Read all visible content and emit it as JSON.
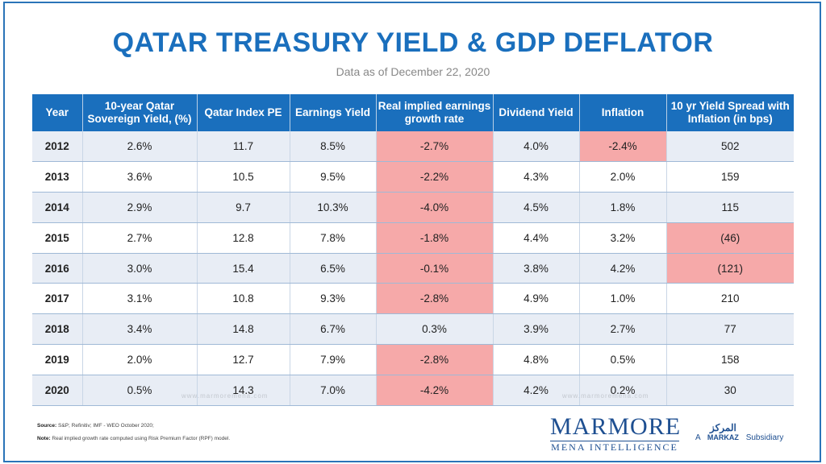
{
  "chart_data": {
    "type": "table",
    "title": "QATAR TREASURY YIELD & GDP DEFLATOR",
    "subtitle": "Data as of December 22, 2020",
    "columns": [
      "Year",
      "10-year Qatar Sovereign Yield, (%)",
      "Qatar Index PE",
      "Earnings Yield",
      "Real implied earnings growth rate",
      "Dividend Yield",
      "Inflation",
      "10 yr Yield Spread with Inflation (in bps)"
    ],
    "rows": [
      {
        "year": "2012",
        "sovereign_yield": "2.6%",
        "pe": "11.7",
        "earnings_yield": "8.5%",
        "real_growth": "-2.7%",
        "dividend_yield": "4.0%",
        "inflation": "-2.4%",
        "spread": "502",
        "highlight": [
          "real_growth",
          "inflation"
        ]
      },
      {
        "year": "2013",
        "sovereign_yield": "3.6%",
        "pe": "10.5",
        "earnings_yield": "9.5%",
        "real_growth": "-2.2%",
        "dividend_yield": "4.3%",
        "inflation": "2.0%",
        "spread": "159",
        "highlight": [
          "real_growth"
        ]
      },
      {
        "year": "2014",
        "sovereign_yield": "2.9%",
        "pe": "9.7",
        "earnings_yield": "10.3%",
        "real_growth": "-4.0%",
        "dividend_yield": "4.5%",
        "inflation": "1.8%",
        "spread": "115",
        "highlight": [
          "real_growth"
        ]
      },
      {
        "year": "2015",
        "sovereign_yield": "2.7%",
        "pe": "12.8",
        "earnings_yield": "7.8%",
        "real_growth": "-1.8%",
        "dividend_yield": "4.4%",
        "inflation": "3.2%",
        "spread": "(46)",
        "highlight": [
          "real_growth",
          "spread"
        ]
      },
      {
        "year": "2016",
        "sovereign_yield": "3.0%",
        "pe": "15.4",
        "earnings_yield": "6.5%",
        "real_growth": "-0.1%",
        "dividend_yield": "3.8%",
        "inflation": "4.2%",
        "spread": "(121)",
        "highlight": [
          "real_growth",
          "spread"
        ]
      },
      {
        "year": "2017",
        "sovereign_yield": "3.1%",
        "pe": "10.8",
        "earnings_yield": "9.3%",
        "real_growth": "-2.8%",
        "dividend_yield": "4.9%",
        "inflation": "1.0%",
        "spread": "210",
        "highlight": [
          "real_growth"
        ]
      },
      {
        "year": "2018",
        "sovereign_yield": "3.4%",
        "pe": "14.8",
        "earnings_yield": "6.7%",
        "real_growth": "0.3%",
        "dividend_yield": "3.9%",
        "inflation": "2.7%",
        "spread": "77",
        "highlight": []
      },
      {
        "year": "2019",
        "sovereign_yield": "2.0%",
        "pe": "12.7",
        "earnings_yield": "7.9%",
        "real_growth": "-2.8%",
        "dividend_yield": "4.8%",
        "inflation": "0.5%",
        "spread": "158",
        "highlight": [
          "real_growth"
        ]
      },
      {
        "year": "2020",
        "sovereign_yield": "0.5%",
        "pe": "14.3",
        "earnings_yield": "7.0%",
        "real_growth": "-4.2%",
        "dividend_yield": "4.2%",
        "inflation": "0.2%",
        "spread": "30",
        "highlight": [
          "real_growth"
        ]
      }
    ],
    "highlight_color": "#f6a9a9"
  },
  "footer": {
    "source_label": "Source:",
    "source_text": "S&P; Refinitiv; IMF - WEO October 2020;",
    "note_label": "Note:",
    "note_text": "Real implied growth rate computed using Risk Premium Factor (RPF) model."
  },
  "branding": {
    "logo_main": "MARMORE",
    "logo_sub": "MENA INTELLIGENCE",
    "prefix": "A",
    "markaz_arabic": "المركز",
    "markaz_latin": "MARKAZ",
    "suffix": "Subsidiary",
    "watermark": "www.marmoremena.com"
  },
  "colors": {
    "header_bg": "#1a6fbd",
    "title": "#1a6fbd",
    "row_alt": "#e8edf5",
    "brand": "#1e4f91"
  }
}
